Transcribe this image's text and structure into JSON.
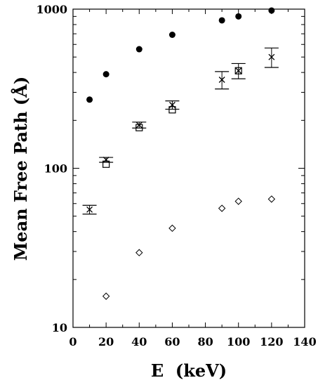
{
  "chart_data": {
    "type": "scatter",
    "xlabel": "E  (keV)",
    "ylabel": "Mean Free Path (Å)",
    "xlim": [
      0,
      140
    ],
    "ylim": [
      10,
      1000
    ],
    "yscale": "log",
    "grid": false,
    "legend": "none",
    "x_ticks": [
      "0",
      "20",
      "40",
      "60",
      "80",
      "100",
      "120",
      "140"
    ],
    "y_ticks": [
      "10",
      "100",
      "1000"
    ],
    "series": [
      {
        "marker": "filled-circle",
        "x": [
          10,
          20,
          40,
          60,
          90,
          100,
          120
        ],
        "y": [
          270,
          390,
          560,
          690,
          850,
          900,
          980
        ]
      },
      {
        "marker": "cross",
        "x": [
          10,
          20,
          40,
          60,
          90,
          100,
          120
        ],
        "y": [
          55,
          113,
          187,
          250,
          360,
          410,
          500
        ],
        "y_err": [
          3.5,
          4,
          8,
          15,
          45,
          45,
          70
        ]
      },
      {
        "marker": "open-square",
        "x": [
          20,
          40,
          60,
          100
        ],
        "y": [
          106,
          180,
          233,
          410
        ]
      },
      {
        "marker": "open-diamond",
        "x": [
          20,
          40,
          60,
          90,
          100,
          120
        ],
        "y": [
          15.7,
          29.5,
          42,
          56,
          62,
          64
        ]
      }
    ]
  }
}
